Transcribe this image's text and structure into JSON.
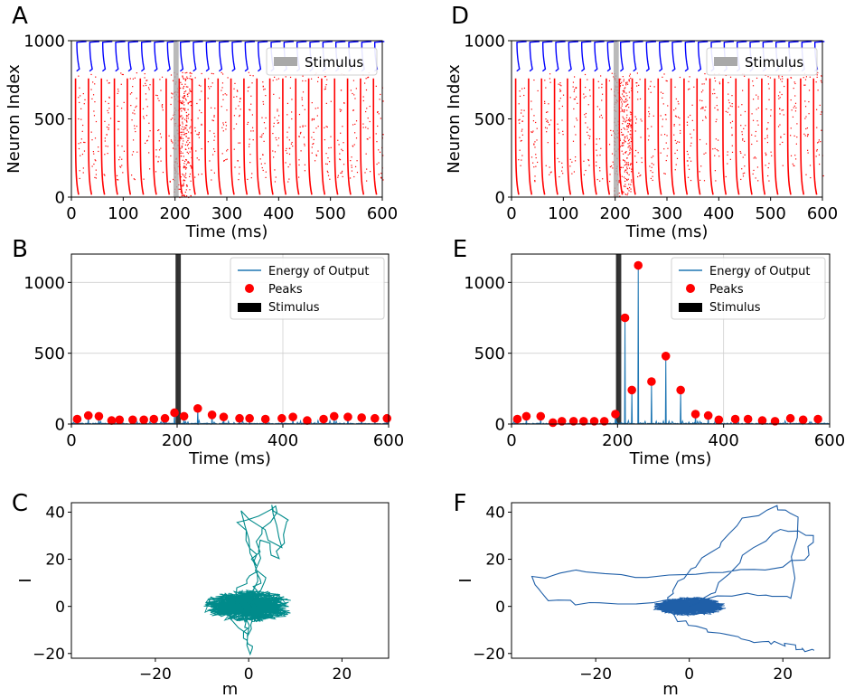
{
  "panels": [
    "A",
    "B",
    "C",
    "D",
    "E",
    "F"
  ],
  "stimulus_window": [
    197,
    207
  ],
  "chart_data": [
    {
      "type": "scatter",
      "panel": "A",
      "subtype": "raster",
      "title": "",
      "xlabel": "Time (ms)",
      "ylabel": "Neuron Index",
      "xlim": [
        0,
        600
      ],
      "ylim": [
        0,
        1000
      ],
      "xticks": [
        "0",
        "100",
        "200",
        "300",
        "400",
        "500",
        "600"
      ],
      "yticks": [
        "0",
        "500",
        "1000"
      ],
      "excitatory_color": "#ff0000",
      "inhibitory_color": "#0000ff",
      "excitatory_neurons": [
        0,
        800
      ],
      "inhibitory_neurons": [
        800,
        1000
      ],
      "burst_times_ms": [
        10,
        35,
        60,
        85,
        110,
        135,
        160,
        185,
        210,
        235,
        260,
        285,
        310,
        335,
        360,
        385,
        410,
        435,
        460,
        485,
        510,
        535,
        560,
        585
      ],
      "legend": [
        "Stimulus"
      ],
      "stimulus_color": "#a9a9a9"
    },
    {
      "type": "line",
      "panel": "B",
      "title": "",
      "xlabel": "Time (ms)",
      "ylabel": "",
      "xlim": [
        0,
        600
      ],
      "ylim": [
        0,
        1200
      ],
      "xticks": [
        "0",
        "200",
        "400",
        "600"
      ],
      "yticks": [
        "0",
        "500",
        "1000"
      ],
      "grid": true,
      "line_color": "#1f77b4",
      "peak_color": "#ff0000",
      "series": [
        {
          "name": "Peaks",
          "x": [
            11,
            32,
            52,
            76,
            91,
            116,
            137,
            156,
            177,
            195,
            213,
            239,
            266,
            288,
            318,
            337,
            367,
            398,
            419,
            446,
            477,
            497,
            523,
            549,
            574,
            597
          ],
          "y": [
            35,
            60,
            55,
            25,
            30,
            30,
            30,
            35,
            40,
            80,
            55,
            110,
            65,
            50,
            40,
            40,
            35,
            40,
            50,
            25,
            35,
            55,
            50,
            45,
            40,
            40
          ]
        }
      ],
      "legend": [
        "Energy of Output",
        "Peaks",
        "Stimulus"
      ],
      "legend_position": "top-right"
    },
    {
      "type": "line",
      "panel": "C",
      "subtype": "phase-trajectory",
      "title": "",
      "xlabel": "m",
      "ylabel": "I",
      "xlim": [
        -38,
        30
      ],
      "ylim": [
        -22,
        44
      ],
      "xticks": [
        "−20",
        "0",
        "20"
      ],
      "yticks": [
        "−20",
        "0",
        "20",
        "40"
      ],
      "line_color": "#008b8b",
      "series": [
        {
          "name": "trajectory",
          "x": [
            0,
            2,
            -3,
            4,
            1,
            -2,
            6,
            3,
            1,
            -1,
            7,
            5,
            9,
            6,
            3,
            2,
            1,
            0,
            -1,
            1,
            -3,
            -2,
            1,
            2,
            0,
            -1
          ],
          "y": [
            0,
            5,
            -4,
            10,
            22,
            35,
            43,
            30,
            18,
            40,
            25,
            43,
            35,
            20,
            28,
            12,
            5,
            -8,
            -15,
            -20,
            -5,
            8,
            15,
            -3,
            -12,
            2
          ]
        }
      ]
    },
    {
      "type": "scatter",
      "panel": "D",
      "subtype": "raster",
      "title": "",
      "xlabel": "Time (ms)",
      "ylabel": "Neuron Index",
      "xlim": [
        0,
        600
      ],
      "ylim": [
        0,
        1000
      ],
      "xticks": [
        "0",
        "100",
        "200",
        "300",
        "400",
        "500",
        "600"
      ],
      "yticks": [
        "0",
        "500",
        "1000"
      ],
      "excitatory_color": "#ff0000",
      "inhibitory_color": "#0000ff",
      "excitatory_neurons": [
        0,
        800
      ],
      "inhibitory_neurons": [
        800,
        1000
      ],
      "burst_times_ms": [
        10,
        35,
        60,
        85,
        110,
        135,
        160,
        185,
        210,
        235,
        260,
        285,
        310,
        335,
        360,
        385,
        410,
        435,
        460,
        485,
        510,
        535,
        560,
        585
      ],
      "legend": [
        "Stimulus"
      ],
      "stimulus_color": "#a9a9a9"
    },
    {
      "type": "line",
      "panel": "E",
      "title": "",
      "xlabel": "Time (ms)",
      "ylabel": "",
      "xlim": [
        0,
        600
      ],
      "ylim": [
        0,
        1200
      ],
      "xticks": [
        "0",
        "200",
        "400",
        "600"
      ],
      "yticks": [
        "0",
        "500",
        "1000"
      ],
      "grid": true,
      "line_color": "#1f77b4",
      "peak_color": "#ff0000",
      "series": [
        {
          "name": "Peaks",
          "x": [
            11,
            28,
            55,
            78,
            95,
            117,
            136,
            156,
            175,
            196,
            214,
            227,
            239,
            264,
            291,
            319,
            347,
            371,
            391,
            422,
            446,
            473,
            497,
            526,
            550,
            578
          ],
          "y": [
            35,
            55,
            55,
            10,
            20,
            20,
            20,
            20,
            20,
            70,
            750,
            240,
            1120,
            300,
            480,
            240,
            70,
            60,
            30,
            35,
            35,
            25,
            20,
            40,
            30,
            35
          ]
        }
      ],
      "legend": [
        "Energy of Output",
        "Peaks",
        "Stimulus"
      ],
      "legend_position": "top-right"
    },
    {
      "type": "line",
      "panel": "F",
      "subtype": "phase-trajectory",
      "title": "",
      "xlabel": "m",
      "ylabel": "I",
      "xlim": [
        -38,
        30
      ],
      "ylim": [
        -22,
        44
      ],
      "xticks": [
        "−20",
        "0",
        "20"
      ],
      "yticks": [
        "−20",
        "0",
        "20",
        "40"
      ],
      "line_color": "#1f5fa8",
      "series": [
        {
          "name": "trajectory",
          "x": [
            0,
            5,
            12,
            20,
            27,
            25,
            14,
            2,
            -12,
            -25,
            -33,
            -30,
            -22,
            -8,
            4,
            15,
            22,
            23,
            18,
            10,
            6,
            0,
            -4,
            -6,
            -3,
            3,
            10,
            16,
            20,
            24,
            27
          ],
          "y": [
            0,
            6,
            22,
            33,
            30,
            20,
            15,
            14,
            12,
            15,
            12,
            3,
            1,
            2,
            4,
            5,
            3,
            38,
            43,
            35,
            25,
            15,
            5,
            0,
            -6,
            -10,
            -13,
            -15,
            -16,
            -18,
            -19
          ]
        }
      ]
    }
  ]
}
